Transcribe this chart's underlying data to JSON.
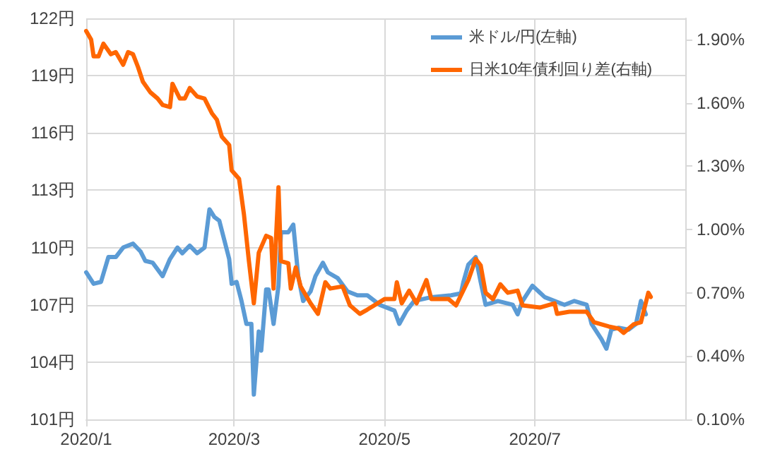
{
  "chart_data": {
    "type": "line",
    "xlim": [
      "2020-01-01",
      "2020-08-31"
    ],
    "xticks": [
      {
        "value": "2020-01-01",
        "label": "2020/1"
      },
      {
        "value": "2020-03-01",
        "label": "2020/3"
      },
      {
        "value": "2020-05-01",
        "label": "2020/5"
      },
      {
        "value": "2020-07-01",
        "label": "2020/7"
      }
    ],
    "ylim": [
      101,
      122
    ],
    "yticks": [
      {
        "value": 101,
        "label": "101円"
      },
      {
        "value": 104,
        "label": "104円"
      },
      {
        "value": 107,
        "label": "107円"
      },
      {
        "value": 110,
        "label": "110円"
      },
      {
        "value": 113,
        "label": "113円"
      },
      {
        "value": 116,
        "label": "116円"
      },
      {
        "value": 119,
        "label": "119円"
      },
      {
        "value": 122,
        "label": "122円"
      }
    ],
    "y2lim": [
      0.1,
      2.0
    ],
    "y2ticks": [
      {
        "value": 0.1,
        "label": "0.10%"
      },
      {
        "value": 0.4,
        "label": "0.40%"
      },
      {
        "value": 0.7,
        "label": "0.70%"
      },
      {
        "value": 1.0,
        "label": "1.00%"
      },
      {
        "value": 1.3,
        "label": "1.30%"
      },
      {
        "value": 1.6,
        "label": "1.60%"
      },
      {
        "value": 1.9,
        "label": "1.90%"
      }
    ],
    "grid": true,
    "legend": "top right",
    "marker": "none",
    "line_style": "solid",
    "series": [
      {
        "name": "米ドル/円(左軸)",
        "color": "#5b9bd5",
        "x": [
          "2020-01-01",
          "2020-01-04",
          "2020-01-07",
          "2020-01-10",
          "2020-01-13",
          "2020-01-16",
          "2020-01-20",
          "2020-01-23",
          "2020-01-25",
          "2020-01-28",
          "2020-02-01",
          "2020-02-04",
          "2020-02-07",
          "2020-02-09",
          "2020-02-12",
          "2020-02-15",
          "2020-02-18",
          "2020-02-20",
          "2020-02-22",
          "2020-02-24",
          "2020-02-26",
          "2020-02-28",
          "2020-02-29",
          "2020-03-02",
          "2020-03-04",
          "2020-03-06",
          "2020-03-08",
          "2020-03-09",
          "2020-03-11",
          "2020-03-12",
          "2020-03-14",
          "2020-03-15",
          "2020-03-17",
          "2020-03-19",
          "2020-03-20",
          "2020-03-23",
          "2020-03-25",
          "2020-03-27",
          "2020-03-29",
          "2020-04-01",
          "2020-04-03",
          "2020-04-06",
          "2020-04-08",
          "2020-04-12",
          "2020-04-16",
          "2020-04-20",
          "2020-04-24",
          "2020-04-29",
          "2020-05-05",
          "2020-05-07",
          "2020-05-10",
          "2020-05-13",
          "2020-05-20",
          "2020-05-28",
          "2020-06-01",
          "2020-06-02",
          "2020-06-04",
          "2020-06-07",
          "2020-06-09",
          "2020-06-11",
          "2020-06-16",
          "2020-06-22",
          "2020-06-24",
          "2020-06-26",
          "2020-06-30",
          "2020-07-05",
          "2020-07-09",
          "2020-07-13",
          "2020-07-17",
          "2020-07-22",
          "2020-07-24",
          "2020-07-28",
          "2020-07-30",
          "2020-08-01",
          "2020-08-04",
          "2020-08-08",
          "2020-08-11",
          "2020-08-13",
          "2020-08-15"
        ],
        "values": [
          108.7,
          108.1,
          108.2,
          109.5,
          109.5,
          110.0,
          110.2,
          109.8,
          109.3,
          109.2,
          108.5,
          109.4,
          110.0,
          109.7,
          110.1,
          109.7,
          110.0,
          112.0,
          111.6,
          111.4,
          110.4,
          109.4,
          108.1,
          108.2,
          107.2,
          106.0,
          106.0,
          102.3,
          105.6,
          104.6,
          107.8,
          107.8,
          106.0,
          108.0,
          110.8,
          110.8,
          111.2,
          108.5,
          107.2,
          107.7,
          108.5,
          109.2,
          108.7,
          108.4,
          107.7,
          107.5,
          107.5,
          107.0,
          106.7,
          106.0,
          106.7,
          107.2,
          107.4,
          107.5,
          107.6,
          108.2,
          109.1,
          109.5,
          108.2,
          107.0,
          107.2,
          107.0,
          106.5,
          107.2,
          108.0,
          107.4,
          107.2,
          107.0,
          107.2,
          107.0,
          106.0,
          105.2,
          104.7,
          105.7,
          105.8,
          105.7,
          106.0,
          107.2,
          106.5
        ]
      },
      {
        "name": "日米10年債利回り差(右軸)",
        "color": "#ff6600",
        "axis": "y2",
        "x": [
          "2020-01-01",
          "2020-01-03",
          "2020-01-04",
          "2020-01-06",
          "2020-01-08",
          "2020-01-11",
          "2020-01-13",
          "2020-01-16",
          "2020-01-18",
          "2020-01-20",
          "2020-01-22",
          "2020-01-24",
          "2020-01-27",
          "2020-01-30",
          "2020-02-01",
          "2020-02-04",
          "2020-02-05",
          "2020-02-08",
          "2020-02-10",
          "2020-02-12",
          "2020-02-15",
          "2020-02-18",
          "2020-02-21",
          "2020-02-23",
          "2020-02-25",
          "2020-02-28",
          "2020-02-29",
          "2020-03-03",
          "2020-03-05",
          "2020-03-07",
          "2020-03-09",
          "2020-03-11",
          "2020-03-14",
          "2020-03-16",
          "2020-03-17",
          "2020-03-19",
          "2020-03-20",
          "2020-03-23",
          "2020-03-24",
          "2020-03-26",
          "2020-03-28",
          "2020-04-01",
          "2020-04-04",
          "2020-04-07",
          "2020-04-09",
          "2020-04-14",
          "2020-04-17",
          "2020-04-21",
          "2020-04-24",
          "2020-05-01",
          "2020-05-05",
          "2020-05-06",
          "2020-05-08",
          "2020-05-11",
          "2020-05-14",
          "2020-05-18",
          "2020-05-20",
          "2020-05-27",
          "2020-05-30",
          "2020-06-04",
          "2020-06-07",
          "2020-06-09",
          "2020-06-11",
          "2020-06-14",
          "2020-06-17",
          "2020-06-20",
          "2020-06-24",
          "2020-06-26",
          "2020-07-03",
          "2020-07-09",
          "2020-07-10",
          "2020-07-15",
          "2020-07-22",
          "2020-07-25",
          "2020-07-31",
          "2020-08-04",
          "2020-08-06",
          "2020-08-10",
          "2020-08-13",
          "2020-08-16",
          "2020-08-17"
        ],
        "values": [
          1.94,
          1.9,
          1.82,
          1.82,
          1.88,
          1.83,
          1.84,
          1.78,
          1.84,
          1.83,
          1.77,
          1.7,
          1.65,
          1.62,
          1.59,
          1.58,
          1.69,
          1.62,
          1.62,
          1.67,
          1.63,
          1.62,
          1.55,
          1.52,
          1.44,
          1.4,
          1.28,
          1.24,
          1.07,
          0.85,
          0.65,
          0.89,
          0.97,
          0.96,
          0.72,
          1.2,
          0.85,
          0.84,
          0.72,
          0.82,
          0.73,
          0.65,
          0.6,
          0.75,
          0.72,
          0.73,
          0.64,
          0.6,
          0.62,
          0.67,
          0.67,
          0.75,
          0.65,
          0.71,
          0.65,
          0.76,
          0.67,
          0.67,
          0.64,
          0.76,
          0.86,
          0.83,
          0.7,
          0.67,
          0.74,
          0.7,
          0.71,
          0.64,
          0.63,
          0.65,
          0.6,
          0.61,
          0.61,
          0.56,
          0.54,
          0.53,
          0.51,
          0.55,
          0.56,
          0.7,
          0.68
        ]
      }
    ]
  }
}
